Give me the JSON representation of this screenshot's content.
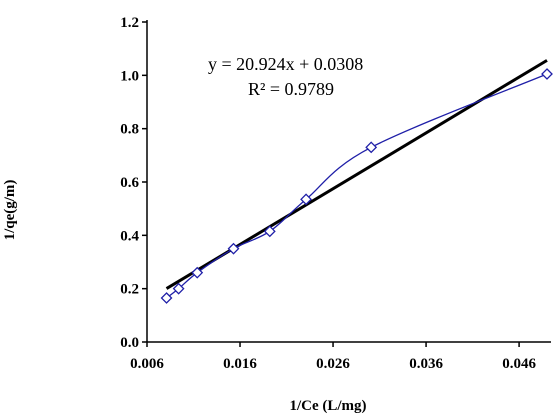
{
  "chart_data": {
    "type": "scatter",
    "xlabel": "1/Ce (L/mg)",
    "ylabel": "1/qe(g/m)",
    "xlim": [
      0.006,
      0.049
    ],
    "ylim": [
      0.0,
      1.2
    ],
    "xticks": [
      0.006,
      0.016,
      0.026,
      0.036,
      0.046
    ],
    "xtick_labels": [
      "0.006",
      "0.016",
      "0.026",
      "0.036",
      "0.046"
    ],
    "yticks": [
      0.0,
      0.2,
      0.4,
      0.6,
      0.8,
      1.0,
      1.2
    ],
    "ytick_labels": [
      "0.0",
      "0.2",
      "0.4",
      "0.6",
      "0.8",
      "1.0",
      "1.2"
    ],
    "grid": false,
    "series": [
      {
        "x": [
          0.0081,
          0.0094,
          0.0114,
          0.0153,
          0.0192,
          0.0231,
          0.0301,
          0.049
        ],
        "y": [
          0.165,
          0.2,
          0.26,
          0.35,
          0.415,
          0.535,
          0.73,
          1.005
        ],
        "color": "#1f1fa8",
        "marker": "diamond"
      }
    ],
    "trendline": {
      "slope": 20.924,
      "intercept": 0.0308,
      "x_range": [
        0.0081,
        0.049
      ],
      "color": "#000000"
    },
    "annotations": {
      "equation": "y = 20.924x + 0.0308",
      "r_squared": "R² = 0.9789"
    }
  }
}
